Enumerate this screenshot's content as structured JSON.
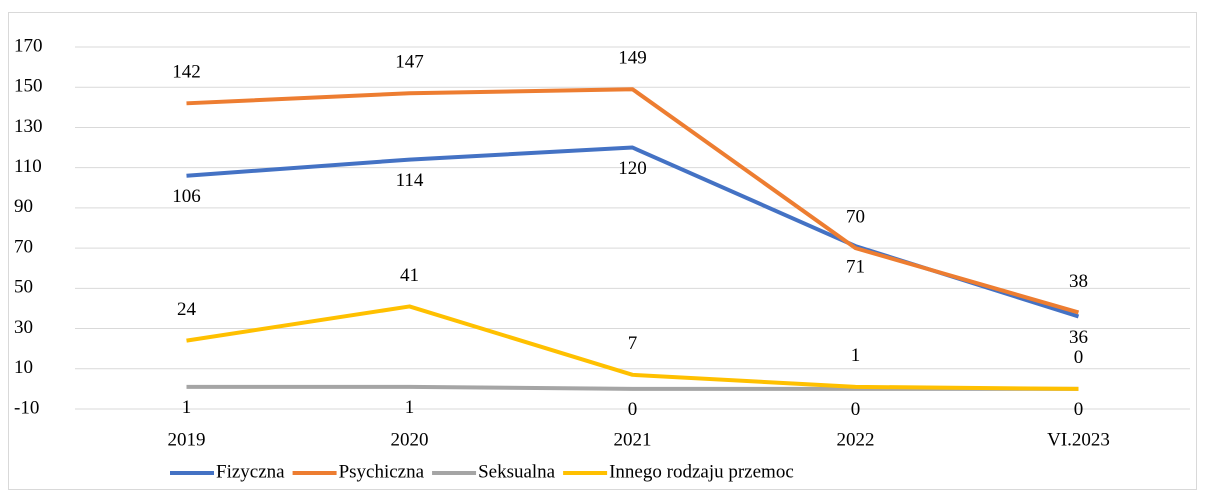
{
  "chart_data": {
    "type": "line",
    "categories": [
      "2019",
      "2020",
      "2021",
      "2022",
      "VI.2023"
    ],
    "series": [
      {
        "name": "Fizyczna",
        "color": "#4472c4",
        "values": [
          106,
          114,
          120,
          71,
          36
        ]
      },
      {
        "name": "Psychiczna",
        "color": "#ed7d31",
        "values": [
          142,
          147,
          149,
          70,
          38
        ]
      },
      {
        "name": "Seksualna",
        "color": "#a5a5a5",
        "values": [
          1,
          1,
          0,
          0,
          0
        ]
      },
      {
        "name": "Innego rodzaju przemoc",
        "color": "#ffc000",
        "values": [
          24,
          41,
          7,
          1,
          0
        ]
      }
    ],
    "ylim": [
      -10,
      170
    ],
    "yticks": [
      -10,
      10,
      30,
      50,
      70,
      90,
      110,
      130,
      150,
      170
    ],
    "grid": true,
    "legend": "bottom"
  }
}
